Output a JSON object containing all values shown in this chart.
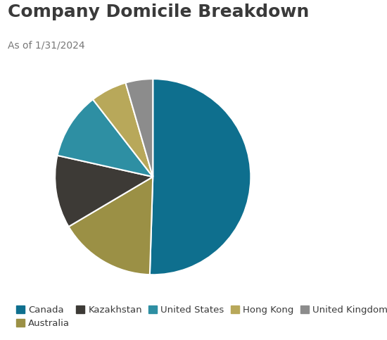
{
  "title": "Company Domicile Breakdown",
  "subtitle": "As of 1/31/2024",
  "labels": [
    "Canada",
    "Australia",
    "Kazakhstan",
    "United States",
    "Hong Kong",
    "United Kingdom"
  ],
  "values": [
    50.5,
    16.0,
    12.0,
    11.0,
    6.0,
    4.5
  ],
  "colors": [
    "#0e6f8e",
    "#9b9045",
    "#3d3a36",
    "#2e8fa3",
    "#b8a85a",
    "#8c8c8c"
  ],
  "background_color": "#ffffff",
  "title_fontsize": 18,
  "subtitle_fontsize": 10,
  "title_color": "#3a3a3a",
  "subtitle_color": "#777777",
  "legend_fontsize": 9.5,
  "startangle": 90
}
